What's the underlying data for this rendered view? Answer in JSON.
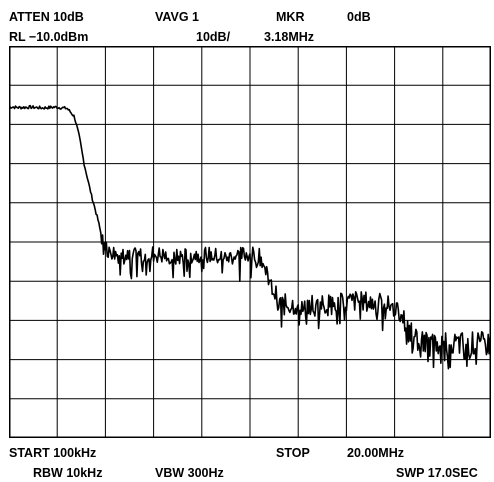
{
  "header": {
    "atten": "ATTEN 10dB",
    "vavg": "VAVG 1",
    "mkr": "MKR",
    "mkr_level": "0dB",
    "rl": "RL −10.0dBm",
    "scale": "10dB/",
    "mkr_freq": "3.18MHz"
  },
  "footer": {
    "start": "START 100kHz",
    "stop": "STOP",
    "stop_freq": "20.00MHz",
    "rbw": "RBW 10kHz",
    "vbw": "VBW 300Hz",
    "swp": "SWP 17.0SEC"
  },
  "colors": {
    "trace": "#000000",
    "grid": "#000000",
    "background": "#ffffff"
  },
  "chart_data": {
    "type": "line",
    "grid": true,
    "xlim_mhz": [
      0.1,
      20.0
    ],
    "ylim_db": [
      -10,
      -110
    ],
    "x_divisions": 10,
    "y_divisions": 10,
    "series": [
      {
        "x": [
          0.1,
          0.5,
          1.0,
          1.5,
          2.0,
          2.5,
          2.8,
          3.0,
          3.2,
          3.5,
          3.8,
          4.0,
          4.5,
          5.0,
          6.0,
          7.0,
          8.0,
          9.0,
          10.0,
          10.5,
          10.8,
          11.0,
          11.3,
          11.8,
          12.5,
          13.5,
          14.5,
          15.5,
          16.0,
          16.3,
          16.6,
          17.0,
          18.0,
          19.0,
          20.0
        ],
        "y": [
          -25.5,
          -25.7,
          -25.6,
          -25.8,
          -25.6,
          -25.9,
          -28,
          -33,
          -40,
          -48,
          -55,
          -61,
          -63,
          -64,
          -63,
          -64,
          -63,
          -64,
          -63,
          -64,
          -69,
          -72,
          -76,
          -76,
          -76,
          -76,
          -75,
          -76,
          -76,
          -78,
          -83,
          -86,
          -86,
          -86,
          -86
        ]
      }
    ]
  }
}
